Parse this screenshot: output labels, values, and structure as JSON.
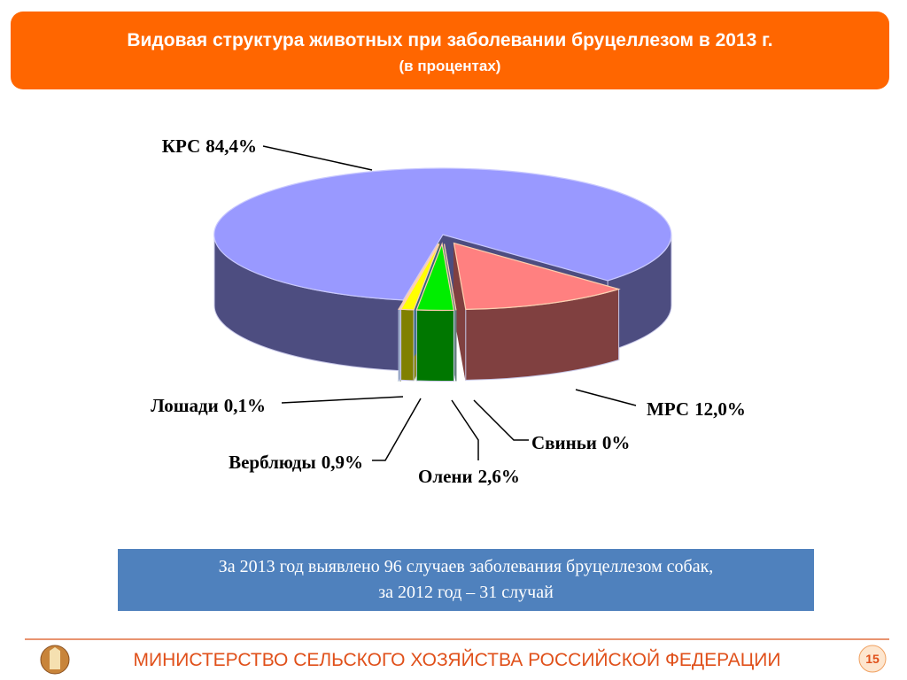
{
  "header": {
    "title": "Видовая структура животных при заболевании бруцеллезом в 2013 г.",
    "subtitle": "(в процентах)"
  },
  "chart_data": {
    "type": "pie",
    "categories": [
      "КРС",
      "МРС",
      "Свиньи",
      "Олени",
      "Верблюды",
      "Лошади"
    ],
    "values": [
      84.4,
      12.0,
      0,
      2.6,
      0.9,
      0.1
    ],
    "value_labels": [
      "84,4%",
      "12,0%",
      "0%",
      "2,6%",
      "0,9%",
      "0,1%"
    ],
    "colors": [
      "#9999ff",
      "#ff8080",
      "#ccffff",
      "#00ee00",
      "#ffff00",
      "#66ccff"
    ]
  },
  "note": {
    "lines": [
      "За 2013 год выявлено 96 случаев заболевания бруцеллезом собак,",
      "за  2012 год – 31 случай"
    ]
  },
  "footer": {
    "text": "МИНИСТЕРСТВО СЕЛЬСКОГО ХОЗЯЙСТВА РОССИЙСКОЙ ФЕДЕРАЦИИ",
    "page": "15"
  }
}
